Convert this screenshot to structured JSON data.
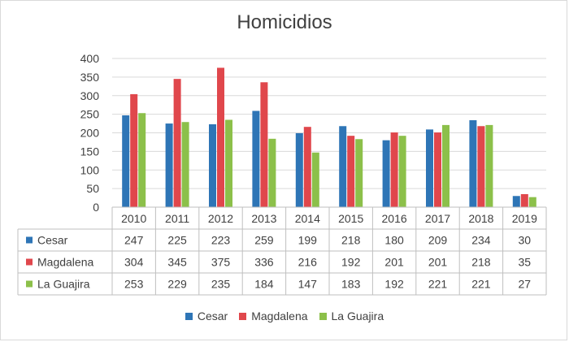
{
  "chart_data": {
    "type": "bar",
    "title": "Homicidios",
    "categories": [
      "2010",
      "2011",
      "2012",
      "2013",
      "2014",
      "2015",
      "2016",
      "2017",
      "2018",
      "2019"
    ],
    "series": [
      {
        "name": "Cesar",
        "color": "#2e75b6",
        "values": [
          247,
          225,
          223,
          259,
          199,
          218,
          180,
          209,
          234,
          30
        ]
      },
      {
        "name": "Magdalena",
        "color": "#e0474c",
        "values": [
          304,
          345,
          375,
          336,
          216,
          192,
          201,
          201,
          218,
          35
        ]
      },
      {
        "name": "La Guajira",
        "color": "#8cc04a",
        "values": [
          253,
          229,
          235,
          184,
          147,
          183,
          192,
          221,
          221,
          27
        ]
      }
    ],
    "ylim": [
      0,
      400
    ],
    "yticks": [
      0,
      50,
      100,
      150,
      200,
      250,
      300,
      350,
      400
    ],
    "grid": true,
    "legend_position": "bottom",
    "data_table": true
  }
}
